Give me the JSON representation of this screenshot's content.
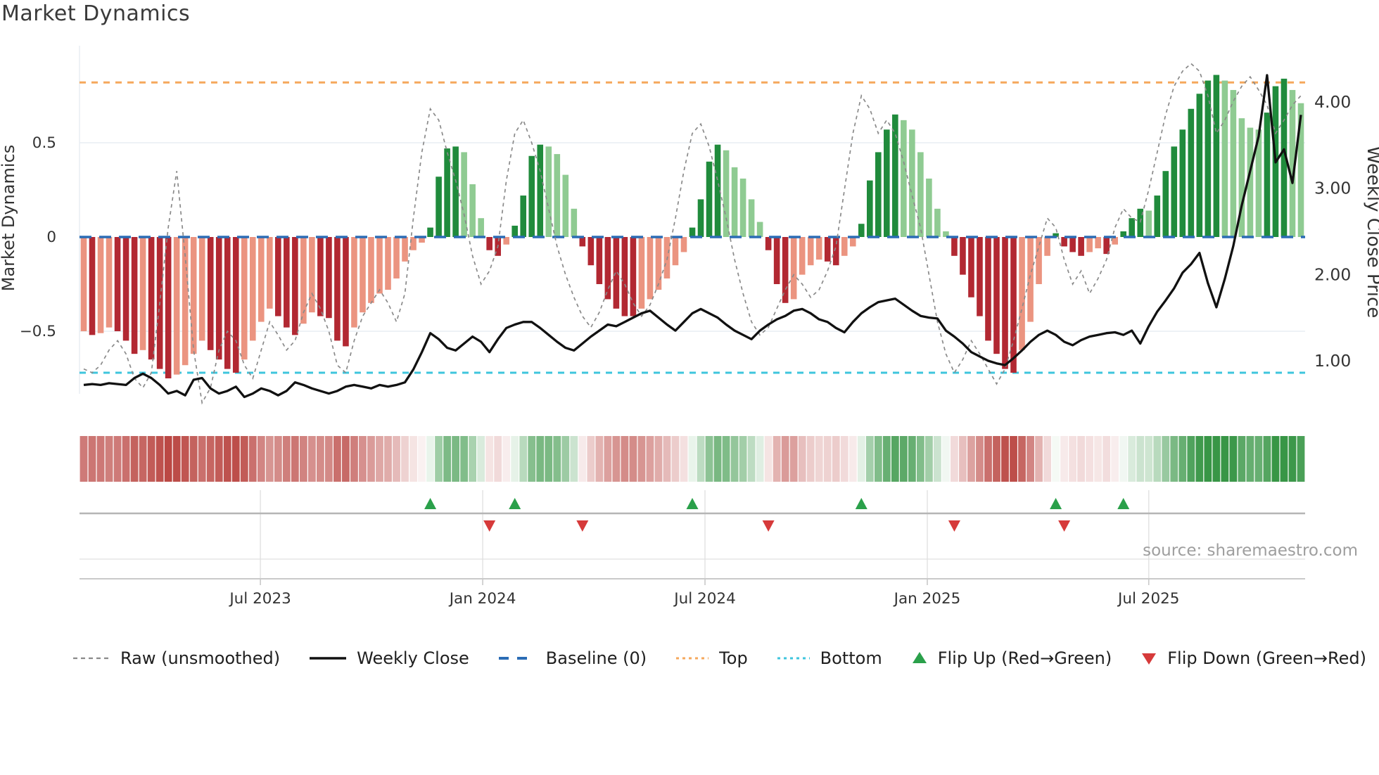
{
  "title": "Market Dynamics",
  "source": "source: sharemaestro.com",
  "legend": {
    "raw": "Raw (unsmoothed)",
    "weekly": "Weekly Close",
    "baseline": "Baseline (0)",
    "top": "Top",
    "bottom": "Bottom",
    "flip_up": "Flip Up (Red→Green)",
    "flip_down": "Flip Down (Green→Red)"
  },
  "colors": {
    "bar_dark_red": "#b22832",
    "bar_light_red": "#eb9480",
    "bar_dark_green": "#208b3c",
    "bar_light_green": "#8fcb92",
    "weekly_close_black": "#111111",
    "raw_gray": "#8a8a8a",
    "baseline_blue": "#2b6cb5",
    "top_orange": "#f5a85c",
    "bottom_cyan": "#3ec5dd",
    "grid": "#e9edf4",
    "axis_text": "#333333",
    "source_gray": "#9e9e9e",
    "marker_up_green": "#2aa04a",
    "marker_down_red": "#d63a3a"
  },
  "chart_data": {
    "type": "bar",
    "title": "Market Dynamics",
    "xlabel": "",
    "ylabel_left": "Market Dynamics",
    "ylabel_right": "Weekly Close Price",
    "left_ticks": [
      {
        "v": 0.5,
        "label": "0.5"
      },
      {
        "v": 0,
        "label": "0"
      },
      {
        "v": -0.5,
        "label": "−0.5"
      }
    ],
    "right_ticks": [
      {
        "v": 4,
        "label": "4.00"
      },
      {
        "v": 3,
        "label": "3.00"
      },
      {
        "v": 2,
        "label": "2.00"
      },
      {
        "v": 1,
        "label": "1.00"
      }
    ],
    "x_ticks": [
      {
        "week": 21.4,
        "label": "Jul 2023"
      },
      {
        "week": 47.7,
        "label": "Jan 2024"
      },
      {
        "week": 74.0,
        "label": "Jul 2024"
      },
      {
        "week": 100.3,
        "label": "Jan 2025"
      },
      {
        "week": 126.5,
        "label": "Jul 2025"
      }
    ],
    "top_level": 0.82,
    "bottom_level": -0.72,
    "baseline": 0,
    "osc_ylim": [
      -0.85,
      1.0
    ],
    "price_ylim": [
      0.5,
      4.5
    ],
    "flip_up_weeks": [
      41,
      51,
      72,
      92,
      115,
      123
    ],
    "flip_down_weeks": [
      48,
      59,
      81,
      103,
      116
    ],
    "oscillator": [
      -0.5,
      -0.52,
      -0.51,
      -0.48,
      -0.5,
      -0.55,
      -0.62,
      -0.6,
      -0.65,
      -0.7,
      -0.75,
      -0.73,
      -0.68,
      -0.62,
      -0.55,
      -0.6,
      -0.65,
      -0.7,
      -0.72,
      -0.65,
      -0.55,
      -0.45,
      -0.38,
      -0.42,
      -0.48,
      -0.52,
      -0.46,
      -0.4,
      -0.42,
      -0.43,
      -0.55,
      -0.58,
      -0.48,
      -0.4,
      -0.35,
      -0.3,
      -0.28,
      -0.22,
      -0.13,
      -0.07,
      -0.03,
      0.05,
      0.32,
      0.47,
      0.48,
      0.45,
      0.28,
      0.1,
      -0.07,
      -0.1,
      -0.04,
      0.06,
      0.22,
      0.43,
      0.49,
      0.48,
      0.44,
      0.33,
      0.15,
      -0.05,
      -0.15,
      -0.25,
      -0.33,
      -0.38,
      -0.42,
      -0.42,
      -0.38,
      -0.33,
      -0.28,
      -0.22,
      -0.15,
      -0.08,
      0.05,
      0.2,
      0.4,
      0.49,
      0.46,
      0.37,
      0.31,
      0.2,
      0.08,
      -0.07,
      -0.25,
      -0.35,
      -0.33,
      -0.2,
      -0.15,
      -0.12,
      -0.13,
      -0.15,
      -0.1,
      -0.05,
      0.07,
      0.3,
      0.45,
      0.57,
      0.65,
      0.62,
      0.57,
      0.45,
      0.31,
      0.15,
      0.03,
      -0.1,
      -0.2,
      -0.32,
      -0.42,
      -0.55,
      -0.62,
      -0.7,
      -0.72,
      -0.6,
      -0.45,
      -0.25,
      -0.1,
      0.02,
      -0.05,
      -0.08,
      -0.1,
      -0.08,
      -0.06,
      -0.09,
      -0.04,
      0.03,
      0.1,
      0.15,
      0.14,
      0.22,
      0.35,
      0.48,
      0.57,
      0.68,
      0.76,
      0.83,
      0.86,
      0.83,
      0.78,
      0.63,
      0.58,
      0.57,
      0.66,
      0.8,
      0.84,
      0.78,
      0.71
    ],
    "raw": [
      -0.7,
      -0.72,
      -0.68,
      -0.6,
      -0.55,
      -0.62,
      -0.75,
      -0.8,
      -0.72,
      -0.35,
      0.05,
      0.35,
      -0.1,
      -0.6,
      -0.88,
      -0.8,
      -0.6,
      -0.5,
      -0.55,
      -0.68,
      -0.75,
      -0.6,
      -0.45,
      -0.52,
      -0.6,
      -0.55,
      -0.4,
      -0.3,
      -0.38,
      -0.5,
      -0.68,
      -0.72,
      -0.55,
      -0.42,
      -0.35,
      -0.28,
      -0.35,
      -0.45,
      -0.3,
      0.1,
      0.45,
      0.68,
      0.62,
      0.45,
      0.3,
      0.12,
      -0.1,
      -0.25,
      -0.18,
      -0.05,
      0.3,
      0.55,
      0.62,
      0.5,
      0.35,
      0.15,
      -0.05,
      -0.2,
      -0.32,
      -0.42,
      -0.48,
      -0.4,
      -0.28,
      -0.18,
      -0.25,
      -0.35,
      -0.42,
      -0.36,
      -0.25,
      -0.12,
      0.1,
      0.35,
      0.55,
      0.6,
      0.48,
      0.3,
      0.1,
      -0.12,
      -0.3,
      -0.45,
      -0.52,
      -0.48,
      -0.38,
      -0.28,
      -0.2,
      -0.25,
      -0.32,
      -0.28,
      -0.18,
      -0.05,
      0.25,
      0.55,
      0.75,
      0.68,
      0.55,
      0.62,
      0.55,
      0.4,
      0.22,
      0.05,
      -0.2,
      -0.45,
      -0.62,
      -0.72,
      -0.65,
      -0.55,
      -0.62,
      -0.7,
      -0.78,
      -0.7,
      -0.55,
      -0.38,
      -0.2,
      -0.05,
      0.1,
      0.05,
      -0.12,
      -0.25,
      -0.18,
      -0.3,
      -0.22,
      -0.12,
      0.05,
      0.15,
      0.1,
      0.08,
      0.25,
      0.45,
      0.65,
      0.8,
      0.88,
      0.92,
      0.88,
      0.75,
      0.55,
      0.62,
      0.72,
      0.8,
      0.85,
      0.78,
      0.7,
      0.55,
      0.62,
      0.7,
      0.75
    ],
    "weekly_close": [
      0.72,
      0.73,
      0.72,
      0.74,
      0.73,
      0.72,
      0.8,
      0.85,
      0.8,
      0.72,
      0.62,
      0.65,
      0.6,
      0.78,
      0.8,
      0.68,
      0.62,
      0.65,
      0.7,
      0.58,
      0.62,
      0.68,
      0.65,
      0.6,
      0.65,
      0.75,
      0.72,
      0.68,
      0.65,
      0.62,
      0.65,
      0.7,
      0.72,
      0.7,
      0.68,
      0.72,
      0.7,
      0.72,
      0.75,
      0.9,
      1.1,
      1.32,
      1.25,
      1.15,
      1.12,
      1.2,
      1.28,
      1.22,
      1.1,
      1.25,
      1.38,
      1.42,
      1.45,
      1.45,
      1.38,
      1.3,
      1.22,
      1.15,
      1.12,
      1.2,
      1.28,
      1.35,
      1.42,
      1.4,
      1.45,
      1.5,
      1.55,
      1.58,
      1.5,
      1.42,
      1.35,
      1.45,
      1.55,
      1.6,
      1.55,
      1.5,
      1.42,
      1.35,
      1.3,
      1.25,
      1.35,
      1.42,
      1.48,
      1.52,
      1.58,
      1.6,
      1.55,
      1.48,
      1.45,
      1.38,
      1.33,
      1.45,
      1.55,
      1.62,
      1.68,
      1.7,
      1.72,
      1.65,
      1.58,
      1.52,
      1.5,
      1.49,
      1.35,
      1.28,
      1.2,
      1.1,
      1.05,
      1.0,
      0.97,
      0.95,
      1.03,
      1.12,
      1.22,
      1.3,
      1.35,
      1.3,
      1.22,
      1.18,
      1.24,
      1.28,
      1.3,
      1.32,
      1.33,
      1.3,
      1.35,
      1.2,
      1.4,
      1.57,
      1.7,
      1.84,
      2.02,
      2.12,
      2.25,
      1.9,
      1.62,
      1.95,
      2.33,
      2.8,
      3.2,
      3.6,
      4.31,
      3.3,
      3.45,
      3.06,
      3.85
    ]
  }
}
